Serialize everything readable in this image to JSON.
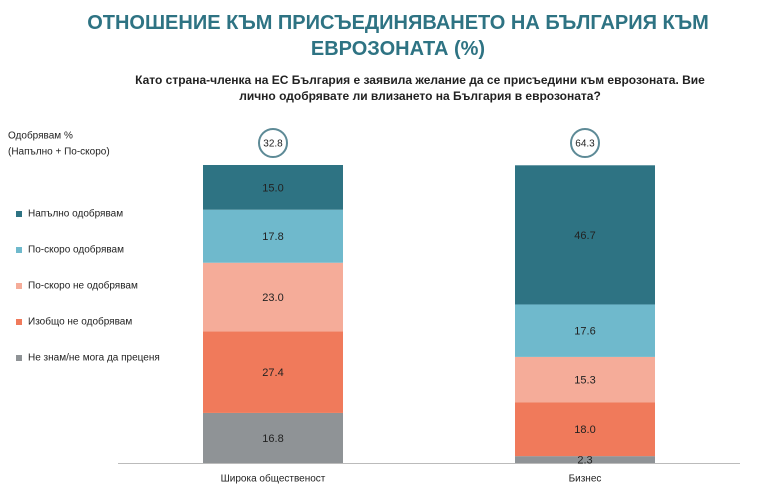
{
  "chart_data": {
    "type": "stacked_bar",
    "title": "ОТНОШЕНИЕ КЪМ ПРИСЪЕДИНЯВАНЕТО НА БЪЛГАРИЯ КЪМ ЕВРОЗОНАТА (%)",
    "subtitle": "Като страна-членка на ЕС България е заявила желание да се присъедини към еврозоната. Вие лично одобрявате ли влизането на България в еврозоната?",
    "categories": [
      "Широка общественост",
      "Бизнес"
    ],
    "series": [
      {
        "name": "Напълно одобрявам",
        "color": "#2e7383",
        "values": [
          15.0,
          46.7
        ],
        "value_labels": [
          "15.0",
          "46.7"
        ]
      },
      {
        "name": "По-скоро одобрявам",
        "color": "#6fb9cc",
        "values": [
          17.8,
          17.6
        ],
        "value_labels": [
          "17.8",
          "17.6"
        ]
      },
      {
        "name": "По-скоро не одобрявам",
        "color": "#f5ac99",
        "values": [
          23.0,
          15.3
        ],
        "value_labels": [
          "23.0",
          "15.3"
        ]
      },
      {
        "name": "Изобщо не одобрявам",
        "color": "#f07a5b",
        "values": [
          27.4,
          18.0
        ],
        "value_labels": [
          "27.4",
          "18.0"
        ]
      },
      {
        "name": "Не знам/не мога да преценя",
        "color": "#8f9396",
        "values": [
          16.8,
          2.3
        ],
        "value_labels": [
          "16.8",
          "2.3"
        ]
      }
    ],
    "totals": {
      "label": "Одобрявам %",
      "sublabel": "(Напълно + По-скоро)",
      "values": [
        32.8,
        64.3
      ]
    },
    "ylim": [
      0,
      100
    ]
  }
}
